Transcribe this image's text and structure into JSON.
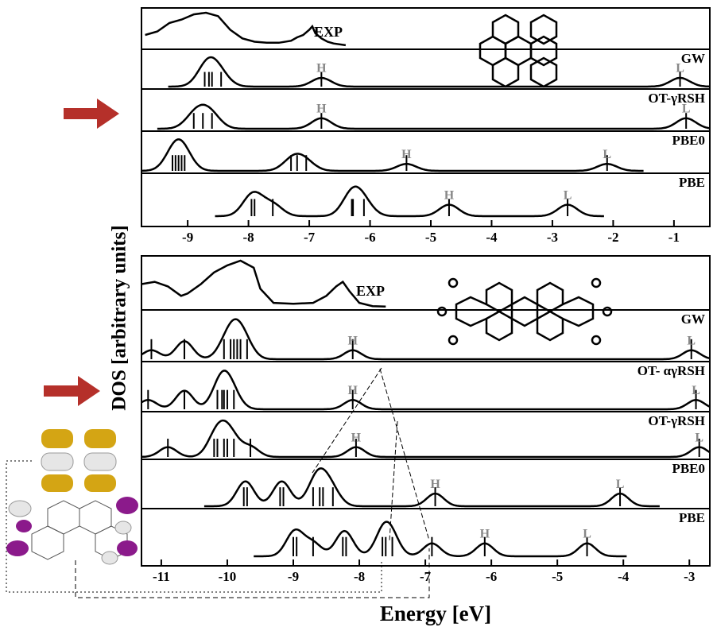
{
  "chart_data": [
    {
      "type": "dos",
      "ylabel": "DOS [arbitrary units]",
      "xlim": [
        -9.76,
        -0.41
      ],
      "xticks": [
        -9,
        -8,
        -7,
        -6,
        -5,
        -4,
        -3,
        -2,
        -1
      ],
      "series": [
        {
          "name": "EXP",
          "x": [
            -9.7,
            -9.5,
            -9.3,
            -9.1,
            -8.9,
            -8.7,
            -8.5,
            -8.3,
            -8.1,
            -7.9,
            -7.7,
            -7.5,
            -7.3,
            -7.2,
            -7.1,
            -7.0,
            -6.95,
            -6.9,
            -6.8,
            -6.7,
            -6.6,
            -6.4
          ],
          "values": [
            0.35,
            0.45,
            0.7,
            0.8,
            0.95,
            1.0,
            0.9,
            0.5,
            0.25,
            0.15,
            0.12,
            0.12,
            0.18,
            0.28,
            0.35,
            0.5,
            0.6,
            0.4,
            0.25,
            0.15,
            0.1,
            0.05
          ]
        },
        {
          "name": "GW",
          "levels": [
            -8.72,
            -8.65,
            -8.6,
            -8.45
          ],
          "homo": {
            "label": "H",
            "value": -6.8
          },
          "lumo": {
            "label": "L",
            "value": -0.9
          }
        },
        {
          "name": "OT-γRSH",
          "levels": [
            -8.9,
            -8.75,
            -8.6
          ],
          "homo": {
            "label": "H",
            "value": -6.8
          },
          "lumo": {
            "label": "L",
            "value": -0.8
          }
        },
        {
          "name": "PBE0",
          "levels": [
            -9.25,
            -9.2,
            -9.15,
            -9.1,
            -9.05,
            -7.3,
            -7.2,
            -7.05
          ],
          "homo": {
            "label": "H",
            "value": -5.4
          },
          "lumo": {
            "label": "L",
            "value": -2.1
          }
        },
        {
          "name": "PBE",
          "levels": [
            -7.95,
            -7.9,
            -7.6,
            -6.3,
            -6.28,
            -6.1
          ],
          "homo": {
            "label": "H",
            "value": -4.7
          },
          "lumo": {
            "label": "L",
            "value": -2.75
          }
        }
      ]
    },
    {
      "type": "dos",
      "xlabel": "Energy [eV]",
      "xlim": [
        -11.3,
        -2.69
      ],
      "xticks": [
        -11,
        -10,
        -9,
        -8,
        -7,
        -6,
        -5,
        -4,
        -3
      ],
      "series": [
        {
          "name": "EXP",
          "x": [
            -11.3,
            -11.1,
            -10.9,
            -10.7,
            -10.6,
            -10.4,
            -10.2,
            -10.0,
            -9.8,
            -9.6,
            -9.5,
            -9.3,
            -9.0,
            -8.7,
            -8.5,
            -8.35,
            -8.25,
            -8.15,
            -8.0,
            -7.8,
            -7.6
          ],
          "values": [
            0.5,
            0.55,
            0.45,
            0.25,
            0.3,
            0.5,
            0.75,
            0.9,
            1.0,
            0.85,
            0.4,
            0.1,
            0.08,
            0.1,
            0.25,
            0.45,
            0.55,
            0.35,
            0.1,
            0.03,
            0.02
          ]
        },
        {
          "name": "GW",
          "levels": [
            -11.15,
            -10.65,
            -10.65,
            -10.05,
            -9.95,
            -9.9,
            -9.85,
            -9.8,
            -9.7
          ],
          "homo": {
            "label": "H",
            "value": -8.1
          },
          "lumo": {
            "label": "L",
            "value": -2.97
          }
        },
        {
          "name": "OT- αγRSH",
          "levels": [
            -11.2,
            -10.65,
            -10.65,
            -10.15,
            -10.08,
            -10.05,
            -10.0,
            -9.9
          ],
          "homo": {
            "label": "H",
            "value": -8.1
          },
          "lumo": {
            "label": "L",
            "value": -2.9
          }
        },
        {
          "name": "OT-γRSH",
          "levels": [
            -10.9,
            -10.2,
            -10.15,
            -10.05,
            -10.0,
            -9.9,
            -9.65
          ],
          "homo": {
            "label": "H",
            "value": -8.05
          },
          "lumo": {
            "label": "L",
            "value": -2.85
          }
        },
        {
          "name": "PBE0",
          "levels": [
            -9.75,
            -9.7,
            -9.2,
            -9.15,
            -8.7,
            -8.6,
            -8.55,
            -8.4
          ],
          "homo": {
            "label": "H",
            "value": -6.85
          },
          "lumo": {
            "label": "L",
            "value": -4.05
          }
        },
        {
          "name": "PBE",
          "levels": [
            -9.0,
            -8.95,
            -8.7,
            -8.25,
            -8.2,
            -7.65,
            -7.6,
            -7.5,
            -6.9
          ],
          "homo": {
            "label": "H",
            "value": -6.1
          },
          "lumo": {
            "label": "L",
            "value": -4.55
          }
        }
      ]
    }
  ]
}
